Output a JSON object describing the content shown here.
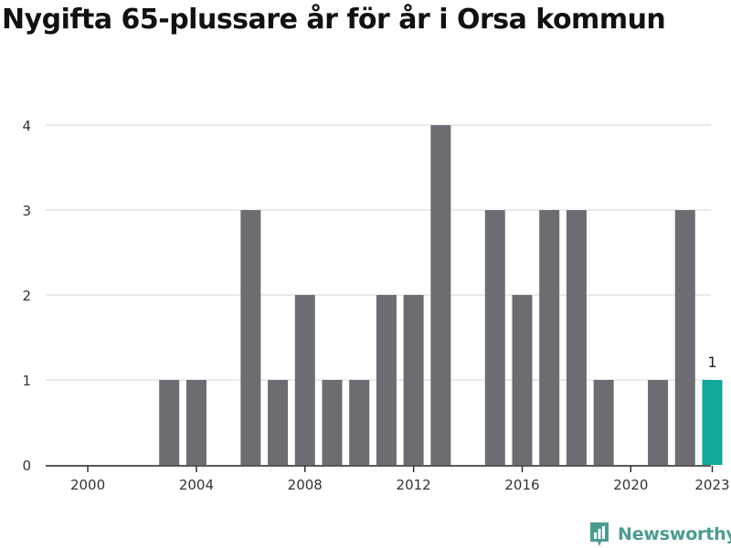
{
  "title": "Nygifta 65-plussare år för år i Orsa kommun",
  "brand": {
    "name": "Newsworthy",
    "icon": "newsworthy-chart-icon",
    "color": "#4a9c8e"
  },
  "chart_data": {
    "type": "bar",
    "title": "Nygifta 65-plussare år för år i Orsa kommun",
    "xlabel": "",
    "ylabel": "",
    "categories": [
      "2000",
      "2001",
      "2002",
      "2003",
      "2004",
      "2005",
      "2006",
      "2007",
      "2008",
      "2009",
      "2010",
      "2011",
      "2012",
      "2013",
      "2014",
      "2015",
      "2016",
      "2017",
      "2018",
      "2019",
      "2020",
      "2021",
      "2022",
      "2023"
    ],
    "values": [
      0,
      0,
      0,
      1,
      1,
      0,
      3,
      1,
      2,
      1,
      1,
      2,
      2,
      4,
      0,
      3,
      2,
      3,
      3,
      1,
      0,
      1,
      3,
      1
    ],
    "ylim": [
      0,
      4
    ],
    "yticks": [
      0,
      1,
      2,
      3,
      4
    ],
    "xticks": [
      "2000",
      "2004",
      "2008",
      "2012",
      "2016",
      "2020",
      "2023"
    ],
    "highlight": {
      "category": "2023",
      "label": "1"
    },
    "colors": {
      "bar": "#6d6c72",
      "highlight": "#0fa89b",
      "grid": "#dddddd",
      "axis": "#222222"
    },
    "grid": true,
    "legend": "none"
  }
}
